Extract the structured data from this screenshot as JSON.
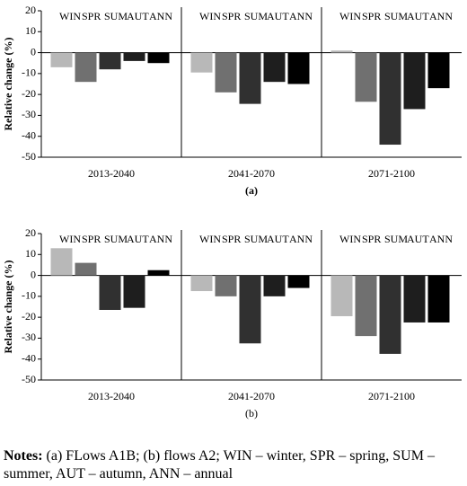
{
  "chart_data": [
    {
      "type": "bar",
      "caption": "(a)",
      "ylabel": "Relative change (%)",
      "categories": [
        "2013-2040",
        "2041-2070",
        "2071-2100"
      ],
      "series": [
        {
          "name": "WIN",
          "color": "#b8b8b8",
          "values": [
            -7,
            -9.5,
            1
          ]
        },
        {
          "name": "SPR",
          "color": "#707070",
          "values": [
            -14,
            -19,
            -23.5
          ]
        },
        {
          "name": "SUM",
          "color": "#303030",
          "values": [
            -8,
            -24.5,
            -44
          ]
        },
        {
          "name": "AUT",
          "color": "#1e1e1e",
          "values": [
            -4,
            -14,
            -27
          ]
        },
        {
          "name": "ANN",
          "color": "#000000",
          "values": [
            -5,
            -15,
            -17
          ]
        }
      ],
      "ylim": [
        -50,
        20
      ],
      "yticks": [
        20,
        10,
        0,
        -10,
        -20,
        -30,
        -40,
        -50
      ]
    },
    {
      "type": "bar",
      "caption": "(b)",
      "ylabel": "Relative change (%)",
      "categories": [
        "2013-2040",
        "2041-2070",
        "2071-2100"
      ],
      "series": [
        {
          "name": "WIN",
          "color": "#b8b8b8",
          "values": [
            13,
            -7.5,
            -19.5
          ]
        },
        {
          "name": "SPR",
          "color": "#707070",
          "values": [
            6,
            -10,
            -29
          ]
        },
        {
          "name": "SUM",
          "color": "#303030",
          "values": [
            -16.5,
            -32.5,
            -37.5
          ]
        },
        {
          "name": "AUT",
          "color": "#1e1e1e",
          "values": [
            -15.5,
            -10,
            -22.5
          ]
        },
        {
          "name": "ANN",
          "color": "#000000",
          "values": [
            2.5,
            -6,
            -22.5
          ]
        }
      ],
      "ylim": [
        -50,
        20
      ],
      "yticks": [
        20,
        10,
        0,
        -10,
        -20,
        -30,
        -40,
        -50
      ]
    }
  ],
  "notes": {
    "label": "Notes:",
    "text": "(a) FLows A1B; (b) flows A2; WIN – winter, SPR – spring, SUM – summer, AUT – autumn, ANN – annual"
  }
}
